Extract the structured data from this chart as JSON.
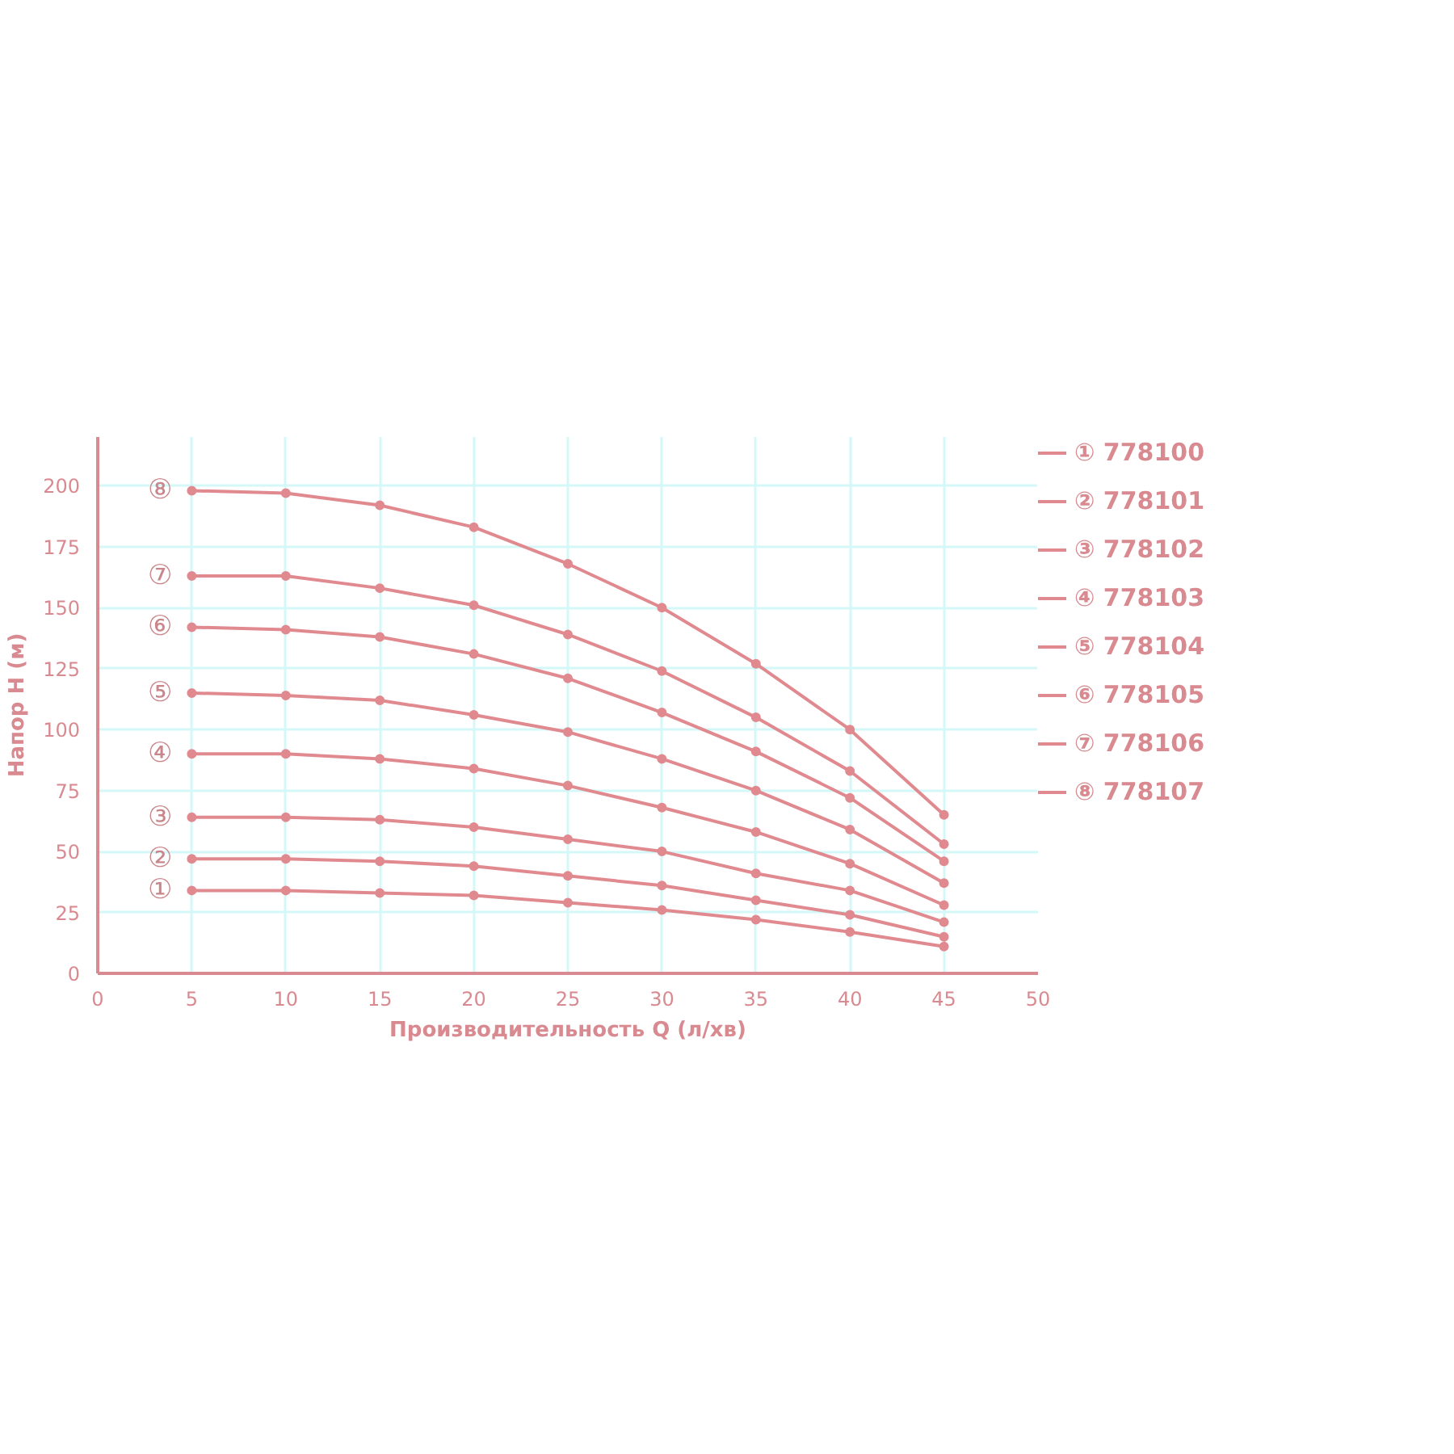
{
  "chart_data": {
    "type": "line",
    "xlabel": "Производительность Q (л/хв)",
    "ylabel": "Напор H (м)",
    "x": [
      5,
      10,
      15,
      20,
      25,
      30,
      35,
      40,
      45
    ],
    "xlim": [
      0,
      50
    ],
    "xticks": [
      0,
      5,
      10,
      15,
      20,
      25,
      30,
      35,
      40,
      45,
      50
    ],
    "ylim": [
      0,
      220
    ],
    "yticks": [
      0,
      25,
      50,
      75,
      100,
      125,
      150,
      175,
      200
    ],
    "grid": true,
    "legend": "right",
    "marker": "circle",
    "line_style": "solid",
    "series": [
      {
        "name": "① 778100",
        "color": "#e08a90",
        "values": [
          34,
          34,
          33,
          32,
          29,
          26,
          22,
          17,
          11
        ]
      },
      {
        "name": "② 778101",
        "color": "#e08a90",
        "values": [
          47,
          47,
          46,
          44,
          40,
          36,
          30,
          24,
          15
        ]
      },
      {
        "name": "③ 778102",
        "color": "#e08a90",
        "values": [
          64,
          64,
          63,
          60,
          55,
          50,
          41,
          34,
          21
        ]
      },
      {
        "name": "④ 778103",
        "color": "#e08a90",
        "values": [
          90,
          90,
          88,
          84,
          77,
          68,
          58,
          45,
          28
        ]
      },
      {
        "name": "⑤ 778104",
        "color": "#e08a90",
        "values": [
          115,
          114,
          112,
          106,
          99,
          88,
          75,
          59,
          37
        ]
      },
      {
        "name": "⑥ 778105",
        "color": "#e08a90",
        "values": [
          142,
          141,
          138,
          131,
          121,
          107,
          91,
          72,
          46
        ]
      },
      {
        "name": "⑦ 778106",
        "color": "#e08a90",
        "values": [
          163,
          163,
          158,
          151,
          139,
          124,
          105,
          83,
          53
        ]
      },
      {
        "name": "⑧ 778107",
        "color": "#e08a90",
        "values": [
          198,
          197,
          192,
          183,
          168,
          150,
          127,
          100,
          65
        ]
      }
    ],
    "annotations": [
      "①",
      "②",
      "③",
      "④",
      "⑤",
      "⑥",
      "⑦",
      "⑧"
    ]
  }
}
